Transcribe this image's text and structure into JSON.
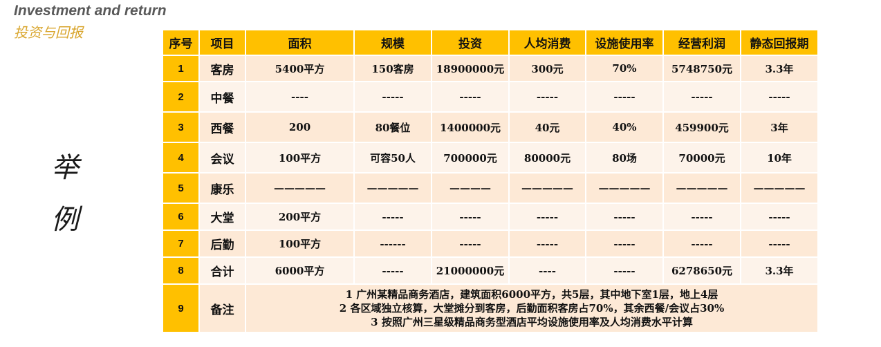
{
  "heading": {
    "title_en": "Investment and return",
    "title_cn": "投资与回报"
  },
  "side_label": [
    "举",
    "例"
  ],
  "table": {
    "headers": [
      "序号",
      "项目",
      "面积",
      "规模",
      "投资",
      "人均消费",
      "设施使用率",
      "经营利润",
      "静态回报期"
    ],
    "rows": [
      {
        "no": "1",
        "item": "客房",
        "area": "5400平方",
        "scale": "150客房",
        "investment": "18900000元",
        "per_capita": "300元",
        "usage": "70%",
        "profit": "5748750元",
        "payback": "3.3年"
      },
      {
        "no": "2",
        "item": "中餐",
        "area": "----",
        "scale": "-----",
        "investment": "-----",
        "per_capita": "-----",
        "usage": "-----",
        "profit": "-----",
        "payback": "-----"
      },
      {
        "no": "3",
        "item": "西餐",
        "area": "200",
        "scale": "80餐位",
        "investment": "1400000元",
        "per_capita": "40元",
        "usage": "40%",
        "profit": "459900元",
        "payback": "3年"
      },
      {
        "no": "4",
        "item": "会议",
        "area": "100平方",
        "scale": "可容50人",
        "investment": "700000元",
        "per_capita": "80000元",
        "usage": "80场",
        "profit": "70000元",
        "payback": "10年"
      },
      {
        "no": "5",
        "item": "康乐",
        "area": "—————",
        "scale": "—————",
        "investment": "————",
        "per_capita": "—————",
        "usage": "—————",
        "profit": "—————",
        "payback": "—————"
      },
      {
        "no": "6",
        "item": "大堂",
        "area": "200平方",
        "scale": "-----",
        "investment": "-----",
        "per_capita": "-----",
        "usage": "-----",
        "profit": "-----",
        "payback": "-----"
      },
      {
        "no": "7",
        "item": "后勤",
        "area": "100平方",
        "scale": "------",
        "investment": "-----",
        "per_capita": "-----",
        "usage": "-----",
        "profit": "-----",
        "payback": "-----"
      },
      {
        "no": "8",
        "item": "合计",
        "area": "6000平方",
        "scale": "-----",
        "investment": "21000000元",
        "per_capita": "----",
        "usage": "-----",
        "profit": "6278650元",
        "payback": "3.3年"
      }
    ],
    "note_row": {
      "no": "9",
      "item": "备注",
      "lines": [
        "1 广州某精品商务酒店，建筑面积6000平方，共5层，其中地下室1层，地上4层",
        "2 各区域独立核算，大堂摊分到客房，后勤面积客房占70%，其余西餐/会议占30%",
        "3 按照广州三星级精品商务型酒店平均设施使用率及人均消费水平计算"
      ]
    }
  },
  "colors": {
    "header_bg": "#ffc000",
    "row_dark": "#fde9d6",
    "row_light": "#fdf3ea",
    "title_en": "#595959",
    "title_cn": "#d9a62e"
  }
}
